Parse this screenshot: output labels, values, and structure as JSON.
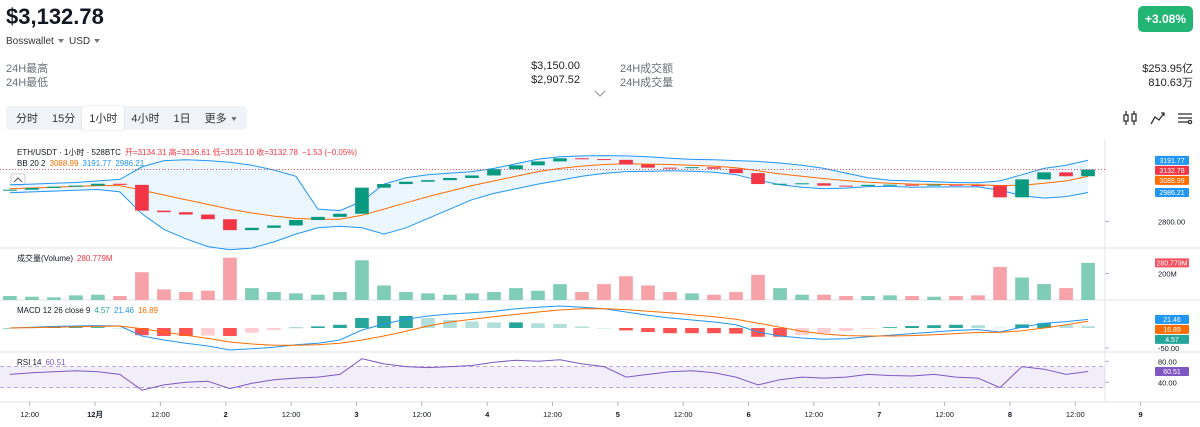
{
  "header": {
    "price": "$3,132.78",
    "exchange": "Bosswallet",
    "currency": "USD",
    "change": "+3.08%"
  },
  "stats": [
    {
      "label": "24H最高",
      "value": "$3,150.00"
    },
    {
      "label": "24H最低",
      "value": "$2,907.52"
    },
    {
      "label": "24H成交额",
      "value": "$253.95亿"
    },
    {
      "label": "24H成交量",
      "value": "810.63万"
    }
  ],
  "tabs": [
    "分时",
    "15分",
    "1小时",
    "4小时",
    "1日",
    "更多"
  ],
  "active_tab": 2,
  "chart": {
    "type": "candlestick",
    "symbol_text": "ETH/USDT · 1小时 · 528BTC",
    "ohlc_text": "开=3134.31 高=3136.61 低=3125.10 收=3132.78",
    "change_text": "−1.53 (−0.05%)",
    "xlim": [
      -0.45,
      49.77
    ],
    "xticks": [
      {
        "value": 0.9,
        "label": "12:00"
      },
      {
        "value": 3.87,
        "label": "12月"
      },
      {
        "value": 6.84,
        "label": "12:00"
      },
      {
        "value": 9.81,
        "label": "2"
      },
      {
        "value": 12.78,
        "label": "12:00"
      },
      {
        "value": 15.75,
        "label": "3"
      },
      {
        "value": 18.72,
        "label": "12:00"
      },
      {
        "value": 21.69,
        "label": "4"
      },
      {
        "value": 24.66,
        "label": "12:00"
      },
      {
        "value": 27.63,
        "label": "5"
      },
      {
        "value": 30.6,
        "label": "12:00"
      },
      {
        "value": 33.57,
        "label": "6"
      },
      {
        "value": 36.54,
        "label": "12:00"
      },
      {
        "value": 39.51,
        "label": "7"
      },
      {
        "value": 42.48,
        "label": "12:00"
      },
      {
        "value": 45.45,
        "label": "8"
      },
      {
        "value": 48.42,
        "label": "12:00"
      },
      {
        "value": 51.39,
        "label": "9"
      }
    ],
    "price": {
      "ylim": [
        2650,
        3290
      ],
      "yticks": [
        {
          "value": 2800,
          "label": "2800.00"
        }
      ],
      "first_open": 3000,
      "closes": [
        3004,
        3015,
        3023,
        3030,
        3042,
        3035,
        2870,
        2860,
        2845,
        2815,
        2745,
        2760,
        2775,
        2810,
        2830,
        2850,
        3017,
        3040,
        3055,
        3065,
        3079,
        3095,
        3135,
        3160,
        3185,
        3205,
        3200,
        3195,
        3165,
        3145,
        3142,
        3148,
        3138,
        3110,
        3040,
        3042,
        3045,
        3030,
        3028,
        3035,
        3036,
        3034,
        3036,
        3033,
        3030,
        2955,
        3070,
        3115,
        3090,
        3132.78
      ],
      "up_color": "#089981",
      "down_color": "#f23645",
      "bb_title": "BB 20 2",
      "bb_mid": [
        3010,
        3015,
        3020,
        3025,
        3030,
        3030,
        3000,
        2970,
        2940,
        2910,
        2880,
        2855,
        2835,
        2820,
        2815,
        2815,
        2840,
        2880,
        2920,
        2960,
        2995,
        3030,
        3060,
        3090,
        3120,
        3140,
        3155,
        3165,
        3170,
        3168,
        3165,
        3160,
        3155,
        3145,
        3125,
        3105,
        3090,
        3075,
        3062,
        3052,
        3045,
        3040,
        3038,
        3036,
        3035,
        3030,
        3033,
        3045,
        3060,
        3088.99
      ],
      "bb_upper": [
        3035,
        3040,
        3045,
        3050,
        3060,
        3070,
        3150,
        3190,
        3195,
        3190,
        3180,
        3160,
        3130,
        3090,
        2880,
        2870,
        2930,
        3040,
        3080,
        3100,
        3110,
        3120,
        3140,
        3170,
        3200,
        3215,
        3220,
        3222,
        3220,
        3215,
        3205,
        3198,
        3195,
        3190,
        3185,
        3175,
        3160,
        3140,
        3110,
        3080,
        3065,
        3060,
        3055,
        3050,
        3048,
        3060,
        3100,
        3140,
        3160,
        3191.77
      ],
      "bb_lower": [
        2985,
        2990,
        2995,
        3000,
        3005,
        2990,
        2850,
        2750,
        2690,
        2640,
        2620,
        2630,
        2670,
        2720,
        2760,
        2770,
        2760,
        2720,
        2760,
        2820,
        2880,
        2940,
        2980,
        3010,
        3040,
        3065,
        3090,
        3108,
        3120,
        3121,
        3125,
        3122,
        3115,
        3100,
        3065,
        3035,
        3020,
        3010,
        3014,
        3024,
        3025,
        3020,
        3021,
        3022,
        3022,
        3000,
        2966,
        2950,
        2960,
        2986.21
      ],
      "mid_color": "#ff6d00",
      "band_color": "#2196f3",
      "last_color": "#f23645"
    },
    "volume": {
      "title": "成交量(Volume)",
      "ylim": [
        0,
        340
      ],
      "yticks": [
        {
          "value": 200,
          "label": "200M"
        }
      ],
      "values": [
        30,
        25,
        20,
        35,
        40,
        30,
        210,
        80,
        60,
        70,
        320,
        90,
        60,
        50,
        40,
        60,
        300,
        110,
        60,
        50,
        40,
        50,
        60,
        90,
        70,
        120,
        60,
        120,
        180,
        110,
        60,
        50,
        40,
        60,
        190,
        90,
        40,
        40,
        30,
        30,
        35,
        30,
        25,
        30,
        35,
        250,
        170,
        120,
        90,
        280.779
      ],
      "last_label": "280.779M",
      "up_color": "#7fcdb7",
      "down_color": "#f7a1a8",
      "badge_color": "#f7525f"
    },
    "macd": {
      "title": "MACD 12 26 close 9",
      "ylim": [
        -55,
        65
      ],
      "yticks": [
        {
          "value": -50,
          "label": "-50.00"
        }
      ],
      "macd": [
        0,
        2,
        4,
        5,
        6,
        5,
        -20,
        -30,
        -38,
        -45,
        -55,
        -52,
        -48,
        -42,
        -38,
        -30,
        -5,
        10,
        22,
        30,
        35,
        38,
        42,
        48,
        52,
        55,
        52,
        48,
        40,
        32,
        25,
        20,
        15,
        8,
        -10,
        -20,
        -25,
        -28,
        -27,
        -22,
        -18,
        -14,
        -10,
        -6,
        -4,
        -10,
        2,
        12,
        16,
        21.46
      ],
      "signal": [
        0,
        1,
        2,
        3,
        4,
        5,
        -2,
        -10,
        -18,
        -26,
        -35,
        -40,
        -43,
        -43,
        -42,
        -38,
        -30,
        -20,
        -8,
        5,
        15,
        22,
        28,
        34,
        40,
        45,
        48,
        48,
        46,
        42,
        38,
        33,
        28,
        22,
        12,
        2,
        -8,
        -15,
        -19,
        -20,
        -20,
        -19,
        -17,
        -14,
        -11,
        -11,
        -7,
        0,
        8,
        16.89
      ],
      "histogram": [
        0,
        1,
        2,
        2,
        2,
        0,
        -18,
        -20,
        -20,
        -19,
        -20,
        -12,
        -5,
        1,
        4,
        8,
        25,
        30,
        30,
        25,
        20,
        16,
        14,
        14,
        12,
        10,
        4,
        0,
        -6,
        -10,
        -13,
        -13,
        -13,
        -14,
        -22,
        -22,
        -17,
        -13,
        -8,
        -2,
        2,
        5,
        7,
        8,
        7,
        1,
        9,
        12,
        8,
        4.57
      ],
      "macd_color": "#2196f3",
      "signal_color": "#ff6d00",
      "hist_color": "#26a69a"
    },
    "rsi": {
      "title": "RSI 14",
      "ylim": [
        12,
        92
      ],
      "yticks": [
        {
          "value": 80,
          "label": "80.00"
        },
        {
          "value": 40,
          "label": "40.00"
        }
      ],
      "values": [
        55,
        58,
        60,
        62,
        60,
        55,
        25,
        35,
        40,
        42,
        28,
        38,
        45,
        48,
        50,
        55,
        85,
        75,
        70,
        68,
        70,
        72,
        78,
        82,
        80,
        83,
        75,
        70,
        50,
        55,
        60,
        62,
        58,
        50,
        35,
        45,
        50,
        48,
        50,
        55,
        53,
        52,
        55,
        50,
        48,
        30,
        70,
        65,
        55,
        60.51
      ],
      "band": [
        30,
        70
      ],
      "color": "#7e57c2"
    }
  }
}
